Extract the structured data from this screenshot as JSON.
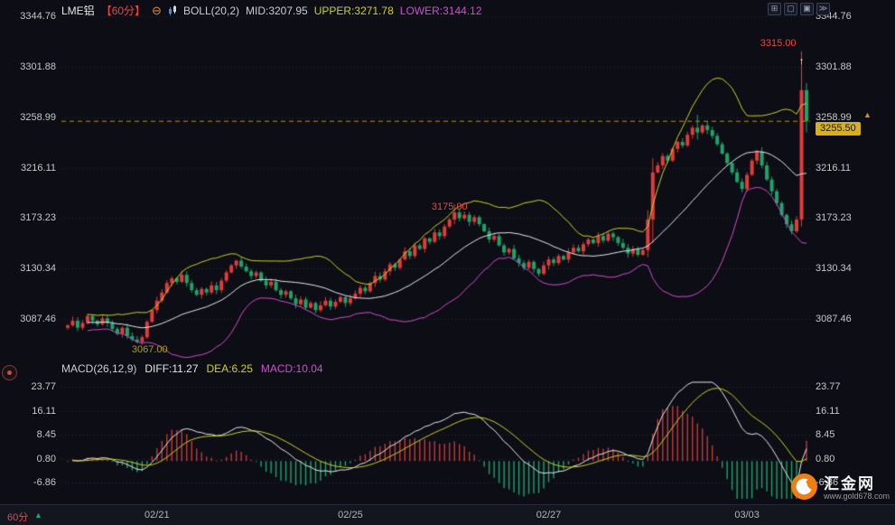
{
  "header": {
    "symbol": "LME铝",
    "period": "【60分】",
    "minus_icon": "⊖",
    "boll": "BOLL(20,2)",
    "mid": "MID:3207.95",
    "upper": "UPPER:3271.78",
    "lower": "LOWER:3144.12"
  },
  "controls": {
    "icons": [
      "⊞",
      "▢",
      "▣",
      "≫"
    ]
  },
  "macd_header": {
    "formula": "MACD(26,12,9)",
    "diff": "DIFF:11.27",
    "dea": "DEA:6.25",
    "macd": "MACD:10.04"
  },
  "last": {
    "tag": "3255.50",
    "marker": "▲"
  },
  "footer": {
    "period": "60分",
    "arrow": "▲"
  },
  "logo": {
    "name": "汇金网",
    "url": "www.gold678.com"
  },
  "colors": {
    "up": "#e23b3b",
    "down": "#1fa36a",
    "boll_upper": "#cdd11e",
    "boll_mid": "#e8e8e8",
    "boll_lower": "#d24bd2",
    "diff_line": "#e8e8e8",
    "dea_line": "#cdd11e",
    "hist_pos": "#c23a3a",
    "hist_neg": "#1fa36a",
    "last_price_line": "#bd8f22",
    "tag_bg": "#d9af1b",
    "grid": "#262836",
    "axis_text": "#c8c8c8"
  },
  "chart_data": {
    "type": "candlestick",
    "title": "LME铝 60分 K线 + BOLL(20,2) + MACD(26,12,9)",
    "price_axis": [
      "3344.76",
      "3301.88",
      "3258.99",
      "3216.11",
      "3173.23",
      "3130.34",
      "3087.46"
    ],
    "macd_axis": [
      "23.77",
      "16.11",
      "8.45",
      "0.80",
      "-6.86"
    ],
    "x_labels": [
      {
        "label": "02/21",
        "index": 18
      },
      {
        "label": "02/25",
        "index": 57
      },
      {
        "label": "02/27",
        "index": 97
      },
      {
        "label": "03/03",
        "index": 137
      }
    ],
    "last_price": 3255.5,
    "indicators": {
      "boll": {
        "period": 20,
        "mult": 2
      },
      "macd": {
        "fast": 12,
        "slow": 26,
        "signal": 9
      }
    },
    "closes": [
      3082,
      3086,
      3080,
      3084,
      3090,
      3086,
      3083,
      3088,
      3084,
      3079,
      3075,
      3080,
      3073,
      3070,
      3068,
      3072,
      3085,
      3095,
      3103,
      3110,
      3118,
      3122,
      3119,
      3125,
      3118,
      3112,
      3108,
      3113,
      3110,
      3116,
      3112,
      3120,
      3127,
      3133,
      3137,
      3132,
      3128,
      3124,
      3127,
      3120,
      3116,
      3119,
      3112,
      3108,
      3111,
      3105,
      3100,
      3104,
      3097,
      3101,
      3095,
      3099,
      3103,
      3098,
      3102,
      3106,
      3101,
      3105,
      3109,
      3114,
      3111,
      3118,
      3124,
      3121,
      3128,
      3134,
      3131,
      3138,
      3145,
      3141,
      3150,
      3147,
      3156,
      3153,
      3161,
      3158,
      3166,
      3172,
      3178,
      3173,
      3176,
      3170,
      3174,
      3168,
      3162,
      3155,
      3158,
      3150,
      3144,
      3147,
      3139,
      3135,
      3131,
      3136,
      3130,
      3126,
      3133,
      3138,
      3135,
      3141,
      3138,
      3144,
      3148,
      3145,
      3151,
      3155,
      3152,
      3158,
      3154,
      3160,
      3157,
      3152,
      3148,
      3143,
      3147,
      3142,
      3146,
      3172,
      3212,
      3218,
      3226,
      3222,
      3232,
      3238,
      3235,
      3244,
      3250,
      3246,
      3252,
      3248,
      3243,
      3236,
      3228,
      3220,
      3212,
      3204,
      3198,
      3210,
      3222,
      3230,
      3218,
      3206,
      3196,
      3186,
      3176,
      3168,
      3162,
      3172,
      3282,
      3255.5
    ],
    "candle_overrides": {
      "14": [
        3070,
        3073,
        3067,
        3068
      ],
      "78": [
        3172,
        3185,
        3168,
        3178
      ],
      "117": [
        3146,
        3180,
        3140,
        3172
      ],
      "118": [
        3172,
        3224,
        3152,
        3212
      ],
      "127": [
        3250,
        3261,
        3240,
        3246
      ],
      "148": [
        3172,
        3315,
        3166,
        3282
      ],
      "149": [
        3282,
        3288,
        3246,
        3255.5
      ]
    },
    "annotations": [
      {
        "text": "3315.00",
        "index": 148,
        "at": 3322,
        "color": "#e8483f",
        "anchor": "right"
      },
      {
        "text": "↑",
        "index": 148,
        "at": 3306,
        "color": "#dcdcdc",
        "anchor": "center"
      },
      {
        "text": "3175.00",
        "index": 77,
        "at": 3183,
        "color": "#e8483f",
        "anchor": "center"
      },
      {
        "text": "3067.00",
        "index": 14,
        "at": 3061,
        "color": "#b09c1a",
        "anchor": "left"
      }
    ]
  }
}
